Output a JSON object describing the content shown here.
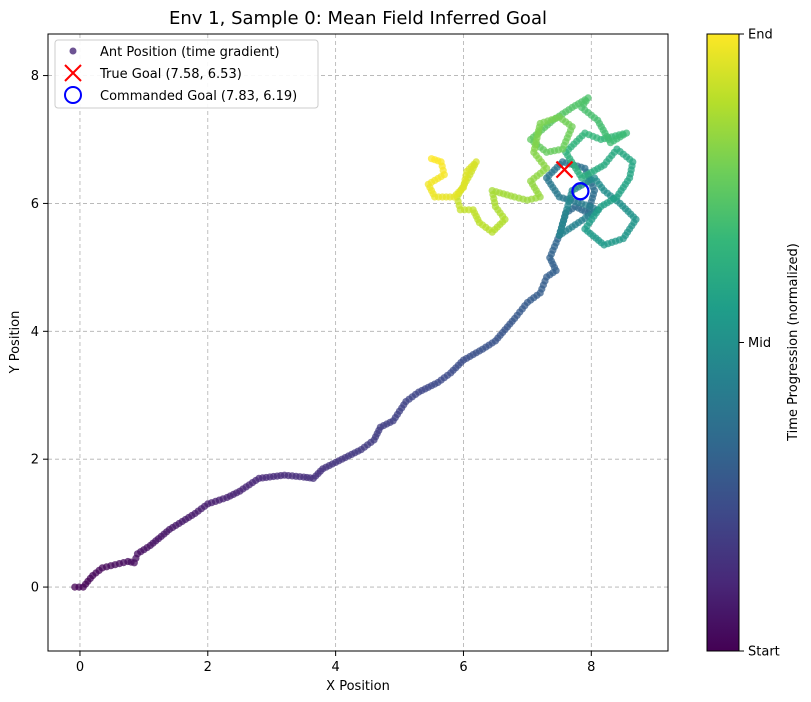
{
  "chart_data": {
    "type": "scatter",
    "title": "Env 1, Sample 0: Mean Field Inferred Goal",
    "xlabel": "X Position",
    "ylabel": "Y Position",
    "xlim": [
      -0.5,
      9.2
    ],
    "ylim": [
      -1.0,
      8.65
    ],
    "xticks": [
      0,
      2,
      4,
      6,
      8
    ],
    "yticks": [
      0,
      2,
      4,
      6,
      8
    ],
    "grid": true,
    "legend_position": "top-left",
    "series": [
      {
        "name": "Ant Position (time gradient)",
        "kind": "trajectory",
        "colormap": "viridis",
        "color": "#482878",
        "waypoints": [
          [
            -0.08,
            0.0
          ],
          [
            0.05,
            0.0
          ],
          [
            0.2,
            0.18
          ],
          [
            0.35,
            0.3
          ],
          [
            0.55,
            0.35
          ],
          [
            0.75,
            0.4
          ],
          [
            0.85,
            0.38
          ],
          [
            0.9,
            0.52
          ],
          [
            1.1,
            0.65
          ],
          [
            1.4,
            0.9
          ],
          [
            1.8,
            1.15
          ],
          [
            2.0,
            1.3
          ],
          [
            2.3,
            1.4
          ],
          [
            2.5,
            1.5
          ],
          [
            2.8,
            1.7
          ],
          [
            3.2,
            1.75
          ],
          [
            3.5,
            1.72
          ],
          [
            3.65,
            1.7
          ],
          [
            3.8,
            1.85
          ],
          [
            4.1,
            2.0
          ],
          [
            4.4,
            2.15
          ],
          [
            4.6,
            2.3
          ],
          [
            4.7,
            2.5
          ],
          [
            4.9,
            2.6
          ],
          [
            5.1,
            2.9
          ],
          [
            5.3,
            3.05
          ],
          [
            5.6,
            3.2
          ],
          [
            5.8,
            3.35
          ],
          [
            6.0,
            3.55
          ],
          [
            6.3,
            3.72
          ],
          [
            6.5,
            3.85
          ],
          [
            6.8,
            4.2
          ],
          [
            7.0,
            4.45
          ],
          [
            7.2,
            4.6
          ],
          [
            7.3,
            4.85
          ],
          [
            7.45,
            4.95
          ],
          [
            7.35,
            5.15
          ],
          [
            7.5,
            5.5
          ],
          [
            7.6,
            5.85
          ],
          [
            7.75,
            5.95
          ],
          [
            7.95,
            5.85
          ],
          [
            8.05,
            6.2
          ],
          [
            7.9,
            6.55
          ],
          [
            7.55,
            6.65
          ],
          [
            7.3,
            6.4
          ],
          [
            7.5,
            6.1
          ],
          [
            7.85,
            6.0
          ],
          [
            8.1,
            5.9
          ],
          [
            7.8,
            5.7
          ],
          [
            7.5,
            5.5
          ],
          [
            7.7,
            6.2
          ],
          [
            8.05,
            6.4
          ],
          [
            8.2,
            6.2
          ],
          [
            8.45,
            6.0
          ],
          [
            8.7,
            5.75
          ],
          [
            8.5,
            5.45
          ],
          [
            8.2,
            5.35
          ],
          [
            7.9,
            5.6
          ],
          [
            8.15,
            5.95
          ],
          [
            8.4,
            6.1
          ],
          [
            8.6,
            6.4
          ],
          [
            8.65,
            6.65
          ],
          [
            8.4,
            6.85
          ],
          [
            8.2,
            6.6
          ],
          [
            7.85,
            6.4
          ],
          [
            7.6,
            6.8
          ],
          [
            7.9,
            7.1
          ],
          [
            8.15,
            7.0
          ],
          [
            8.55,
            7.1
          ],
          [
            8.3,
            6.95
          ],
          [
            8.1,
            7.3
          ],
          [
            7.85,
            7.5
          ],
          [
            7.95,
            7.65
          ],
          [
            7.7,
            7.5
          ],
          [
            7.4,
            7.3
          ],
          [
            7.05,
            7.0
          ],
          [
            7.3,
            6.8
          ],
          [
            7.55,
            6.85
          ],
          [
            7.7,
            7.2
          ],
          [
            7.5,
            7.35
          ],
          [
            7.2,
            7.25
          ],
          [
            7.1,
            6.8
          ],
          [
            7.3,
            6.55
          ],
          [
            7.05,
            6.35
          ],
          [
            7.2,
            6.1
          ],
          [
            7.0,
            6.05
          ],
          [
            6.8,
            6.1
          ],
          [
            6.45,
            6.2
          ],
          [
            6.5,
            5.95
          ],
          [
            6.65,
            5.75
          ],
          [
            6.45,
            5.55
          ],
          [
            6.25,
            5.7
          ],
          [
            6.15,
            5.9
          ],
          [
            5.95,
            5.9
          ],
          [
            5.9,
            6.1
          ],
          [
            6.1,
            6.45
          ],
          [
            6.2,
            6.65
          ],
          [
            6.05,
            6.5
          ],
          [
            6.0,
            6.25
          ],
          [
            5.85,
            6.1
          ],
          [
            5.55,
            6.1
          ],
          [
            5.45,
            6.3
          ],
          [
            5.7,
            6.45
          ],
          [
            5.65,
            6.65
          ],
          [
            5.5,
            6.7
          ]
        ]
      },
      {
        "name": "True Goal (7.58, 6.53)",
        "kind": "marker-x",
        "color": "#ff0000",
        "points": [
          [
            7.58,
            6.53
          ]
        ]
      },
      {
        "name": "Commanded Goal (7.83, 6.19)",
        "kind": "marker-circle",
        "color": "#0000ff",
        "points": [
          [
            7.83,
            6.19
          ]
        ]
      }
    ],
    "colorbar": {
      "label": "Time Progression (normalized)",
      "ticks": [
        "Start",
        "Mid",
        "End"
      ],
      "range": [
        0,
        1
      ],
      "tick_positions": [
        0,
        0.5,
        1
      ],
      "colors": [
        "#440154",
        "#482878",
        "#3e4989",
        "#31688e",
        "#26828e",
        "#1f9e89",
        "#35b779",
        "#6ece58",
        "#b5de2b",
        "#fde725"
      ]
    }
  }
}
